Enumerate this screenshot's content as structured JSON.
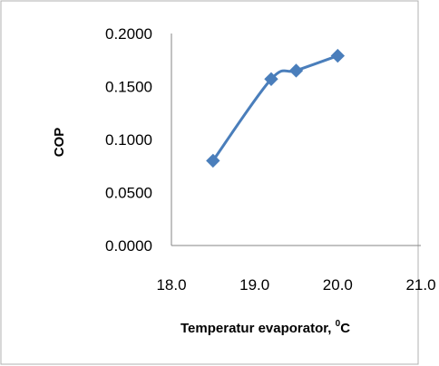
{
  "chart_data": {
    "type": "line",
    "title": "",
    "xlabel": "Temperatur evaporator, ",
    "xlabel_sup": "0",
    "xlabel_unit": "C",
    "ylabel": "COP",
    "xlim": [
      18.0,
      21.0
    ],
    "ylim": [
      0.0,
      0.2
    ],
    "x_ticks": [
      "18.0",
      "19.0",
      "20.0",
      "21.0"
    ],
    "y_ticks": [
      "0.0000",
      "0.0500",
      "0.1000",
      "0.1500",
      "0.2000"
    ],
    "grid": false,
    "series": [
      {
        "color": "#4a7ebb",
        "marker": "diamond",
        "x": [
          18.5,
          19.2,
          19.5,
          20.0
        ],
        "y": [
          0.08,
          0.157,
          0.165,
          0.179
        ]
      }
    ]
  }
}
